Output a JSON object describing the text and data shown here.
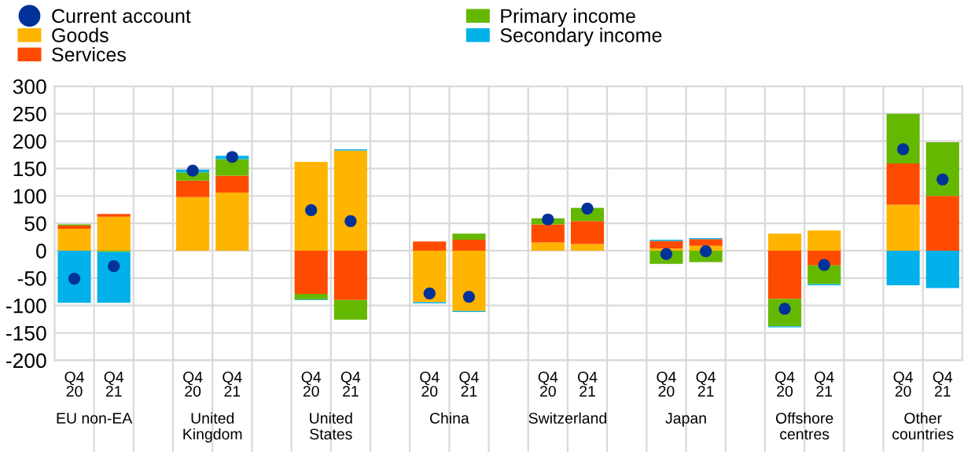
{
  "chart_data": {
    "type": "bar",
    "stacked": true,
    "categories": [
      "Q4\n20",
      "Q4\n21",
      null,
      "Q4\n20",
      "Q4\n21",
      null,
      "Q4\n20",
      "Q4\n21",
      null,
      "Q4\n20",
      "Q4\n21",
      null,
      "Q4\n20",
      "Q4\n21",
      null,
      "Q4\n20",
      "Q4\n21",
      null,
      "Q4\n20",
      "Q4\n21",
      null,
      "Q4\n20",
      "Q4\n21"
    ],
    "series": [
      {
        "name": "Current account",
        "type": "scatter",
        "color": "#003299",
        "values": [
          -51,
          -28,
          null,
          146,
          171,
          null,
          74,
          54,
          null,
          -78,
          -84,
          null,
          57,
          77,
          null,
          -6,
          -1,
          null,
          -106,
          -26,
          null,
          185,
          130
        ]
      },
      {
        "name": "Goods",
        "color": "#ffb400",
        "values": [
          40,
          62,
          null,
          98,
          106,
          null,
          162,
          183,
          null,
          -94,
          -110,
          null,
          15,
          12,
          null,
          4,
          9,
          null,
          31,
          37,
          null,
          84,
          0
        ]
      },
      {
        "name": "Services",
        "color": "#ff4b00",
        "values": [
          6,
          5,
          null,
          30,
          31,
          null,
          -79,
          -90,
          null,
          17,
          20,
          null,
          33,
          42,
          null,
          14,
          12,
          null,
          -88,
          -27,
          null,
          75,
          100
        ]
      },
      {
        "name": "Primary income",
        "color": "#65b800",
        "values": [
          2,
          -2,
          null,
          15,
          30,
          null,
          -10,
          -36,
          null,
          0,
          11,
          null,
          11,
          24,
          null,
          -24,
          -21,
          null,
          -50,
          -34,
          null,
          91,
          98
        ]
      },
      {
        "name": "Secondary income",
        "color": "#00b1ea",
        "values": [
          -95,
          -93,
          null,
          5,
          6,
          null,
          -1,
          2,
          null,
          -2,
          -2,
          null,
          0,
          0,
          null,
          2,
          2,
          null,
          -2,
          -2,
          null,
          -63,
          -68
        ]
      }
    ],
    "annotations": [
      "EU non-EA",
      "United\nKingdom",
      "United\nStates",
      "China",
      "Switzerland",
      "Japan",
      "Offshore\ncentres",
      "Other\ncountries"
    ],
    "ylim": [
      -200,
      300
    ],
    "yticks": [
      -200,
      -150,
      -100,
      -50,
      0,
      50,
      100,
      150,
      200,
      250,
      300
    ],
    "grid": true,
    "legend": "top",
    "marker": "circle"
  }
}
